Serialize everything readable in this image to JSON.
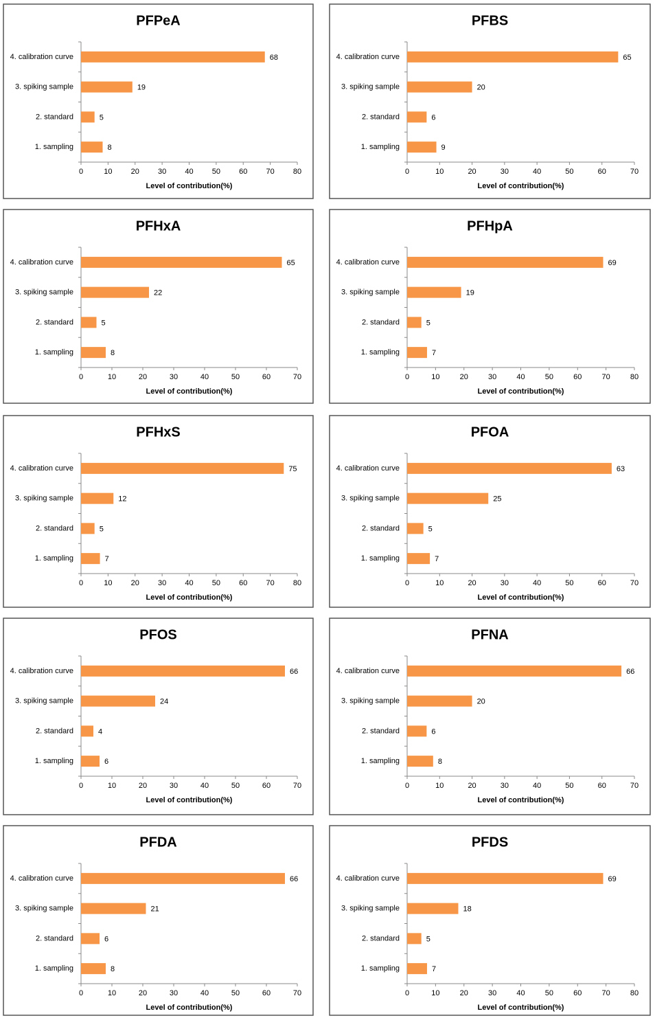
{
  "chart_data": [
    {
      "type": "bar",
      "orientation": "horizontal",
      "title": "PFPeA",
      "categories": [
        "4. calibration curve",
        "3. spiking sample",
        "2. standard",
        "1. sampling"
      ],
      "values": [
        68,
        19,
        5,
        8
      ],
      "color": "#f79646",
      "xlabel": "Level of contribution(%)",
      "xlim": [
        0,
        80
      ],
      "xticks": [
        0,
        10,
        20,
        30,
        40,
        50,
        60,
        70,
        80
      ]
    },
    {
      "type": "bar",
      "orientation": "horizontal",
      "title": "PFBS",
      "categories": [
        "4. calibration curve",
        "3. spiking sample",
        "2. standard",
        "1. sampling"
      ],
      "values": [
        65,
        20,
        6,
        9
      ],
      "color": "#f79646",
      "xlabel": "Level of contribution(%)",
      "xlim": [
        0,
        70
      ],
      "xticks": [
        0,
        10,
        20,
        30,
        40,
        50,
        60,
        70
      ]
    },
    {
      "type": "bar",
      "orientation": "horizontal",
      "title": "PFHxA",
      "categories": [
        "4. calibration curve",
        "3. spiking sample",
        "2. standard",
        "1. sampling"
      ],
      "values": [
        65,
        22,
        5,
        8
      ],
      "color": "#f79646",
      "xlabel": "Level of contribution(%)",
      "xlim": [
        0,
        70
      ],
      "xticks": [
        0,
        10,
        20,
        30,
        40,
        50,
        60,
        70
      ]
    },
    {
      "type": "bar",
      "orientation": "horizontal",
      "title": "PFHpA",
      "categories": [
        "4. calibration curve",
        "3. spiking sample",
        "2. standard",
        "1. sampling"
      ],
      "values": [
        69,
        19,
        5,
        7
      ],
      "color": "#f79646",
      "xlabel": "Level of contribution(%)",
      "xlim": [
        0,
        80
      ],
      "xticks": [
        0,
        10,
        20,
        30,
        40,
        50,
        60,
        70,
        80
      ]
    },
    {
      "type": "bar",
      "orientation": "horizontal",
      "title": "PFHxS",
      "categories": [
        "4. calibration curve",
        "3. spiking sample",
        "2. standard",
        "1. sampling"
      ],
      "values": [
        75,
        12,
        5,
        7
      ],
      "color": "#f79646",
      "xlabel": "Level of contribution(%)",
      "xlim": [
        0,
        80
      ],
      "xticks": [
        0,
        10,
        20,
        30,
        40,
        50,
        60,
        70,
        80
      ]
    },
    {
      "type": "bar",
      "orientation": "horizontal",
      "title": "PFOA",
      "categories": [
        "4. calibration curve",
        "3. spiking sample",
        "2. standard",
        "1. sampling"
      ],
      "values": [
        63,
        25,
        5,
        7
      ],
      "color": "#f79646",
      "xlabel": "Level of contribution(%)",
      "xlim": [
        0,
        70
      ],
      "xticks": [
        0,
        10,
        20,
        30,
        40,
        50,
        60,
        70
      ]
    },
    {
      "type": "bar",
      "orientation": "horizontal",
      "title": "PFOS",
      "categories": [
        "4. calibration curve",
        "3. spiking sample",
        "2. standard",
        "1. sampling"
      ],
      "values": [
        66,
        24,
        4,
        6
      ],
      "color": "#f79646",
      "xlabel": "Level of contribution(%)",
      "xlim": [
        0,
        70
      ],
      "xticks": [
        0,
        10,
        20,
        30,
        40,
        50,
        60,
        70
      ]
    },
    {
      "type": "bar",
      "orientation": "horizontal",
      "title": "PFNA",
      "categories": [
        "4. calibration curve",
        "3. spiking sample",
        "2. standard",
        "1. sampling"
      ],
      "values": [
        66,
        20,
        6,
        8
      ],
      "color": "#f79646",
      "xlabel": "Level of contribution(%)",
      "xlim": [
        0,
        70
      ],
      "xticks": [
        0,
        10,
        20,
        30,
        40,
        50,
        60,
        70
      ]
    },
    {
      "type": "bar",
      "orientation": "horizontal",
      "title": "PFDA",
      "categories": [
        "4. calibration curve",
        "3. spiking sample",
        "2. standard",
        "1. sampling"
      ],
      "values": [
        66,
        21,
        6,
        8
      ],
      "color": "#f79646",
      "xlabel": "Level of contribution(%)",
      "xlim": [
        0,
        70
      ],
      "xticks": [
        0,
        10,
        20,
        30,
        40,
        50,
        60,
        70
      ]
    },
    {
      "type": "bar",
      "orientation": "horizontal",
      "title": "PFDS",
      "categories": [
        "4. calibration curve",
        "3. spiking sample",
        "2. standard",
        "1. sampling"
      ],
      "values": [
        69,
        18,
        5,
        7
      ],
      "color": "#f79646",
      "xlabel": "Level of contribution(%)",
      "xlim": [
        0,
        80
      ],
      "xticks": [
        0,
        10,
        20,
        30,
        40,
        50,
        60,
        70,
        80
      ]
    }
  ]
}
